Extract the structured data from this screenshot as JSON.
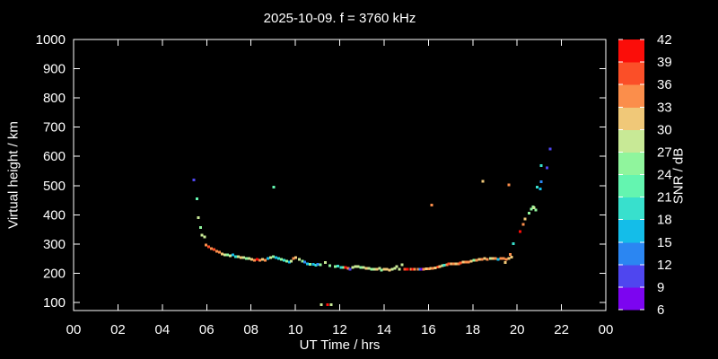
{
  "page": {
    "background_color": "#000000",
    "frame_color": "#ffffff"
  },
  "chart_data": {
    "type": "scatter",
    "title": "2025-10-09. f = 3760 kHz",
    "xlabel": "UT Time / hrs",
    "ylabel": "Virtual height / km",
    "xlim": [
      0,
      24
    ],
    "ylim": [
      72,
      1000
    ],
    "grid": false,
    "x_ticks": [
      {
        "value": 0,
        "label": "00"
      },
      {
        "value": 2,
        "label": "02"
      },
      {
        "value": 4,
        "label": "04"
      },
      {
        "value": 6,
        "label": "06"
      },
      {
        "value": 8,
        "label": "08"
      },
      {
        "value": 10,
        "label": "10"
      },
      {
        "value": 12,
        "label": "12"
      },
      {
        "value": 14,
        "label": "14"
      },
      {
        "value": 16,
        "label": "16"
      },
      {
        "value": 18,
        "label": "18"
      },
      {
        "value": 20,
        "label": "20"
      },
      {
        "value": 22,
        "label": "22"
      },
      {
        "value": 24,
        "label": "00"
      }
    ],
    "y_ticks": [
      100,
      200,
      300,
      400,
      500,
      600,
      700,
      800,
      900,
      1000
    ],
    "colorbar": {
      "label": "SNR / dB",
      "min": 6,
      "max": 42,
      "tick_step": 3,
      "ticks": [
        6,
        9,
        12,
        15,
        18,
        21,
        24,
        27,
        30,
        33,
        36,
        39,
        42
      ],
      "segment_colors_low_to_high": [
        "#7c05f0",
        "#4f46ef",
        "#2b86f2",
        "#14bde9",
        "#38e0cd",
        "#64f5b0",
        "#90f59d",
        "#c8e996",
        "#f0c878",
        "#fb8e4b",
        "#fb4f28",
        "#fb0d09"
      ]
    },
    "points_format": [
      "ut_hr",
      "virtual_height_km",
      "snr_db"
    ],
    "points": [
      [
        5.42,
        520,
        10.5
      ],
      [
        5.56,
        455,
        22.5
      ],
      [
        5.63,
        390,
        28.5
      ],
      [
        5.72,
        357,
        25.5
      ],
      [
        5.79,
        331,
        28.5
      ],
      [
        5.9,
        325,
        28.5
      ],
      [
        5.97,
        297,
        34.5
      ],
      [
        6.09,
        290,
        37.5
      ],
      [
        6.21,
        284,
        34.5
      ],
      [
        6.33,
        281,
        37.5
      ],
      [
        6.45,
        275,
        34.5
      ],
      [
        6.58,
        272,
        34.5
      ],
      [
        6.7,
        266,
        31.5
      ],
      [
        6.82,
        263,
        28.5
      ],
      [
        6.94,
        263,
        25.5
      ],
      [
        7.06,
        260,
        28.5
      ],
      [
        7.18,
        263,
        16.5
      ],
      [
        7.3,
        257,
        19.5
      ],
      [
        7.43,
        257,
        28.5
      ],
      [
        7.55,
        254,
        31.5
      ],
      [
        7.67,
        254,
        28.5
      ],
      [
        7.79,
        251,
        25.5
      ],
      [
        7.91,
        251,
        28.5
      ],
      [
        8.03,
        248,
        31.5
      ],
      [
        8.15,
        245,
        34.5
      ],
      [
        8.28,
        248,
        40.5
      ],
      [
        8.4,
        245,
        34.5
      ],
      [
        8.52,
        248,
        31.5
      ],
      [
        8.64,
        245,
        34.5
      ],
      [
        8.76,
        251,
        16.5
      ],
      [
        8.88,
        254,
        28.5
      ],
      [
        9.0,
        257,
        25.5
      ],
      [
        9.03,
        495,
        22.5
      ],
      [
        9.13,
        254,
        16.5
      ],
      [
        9.25,
        251,
        19.5
      ],
      [
        9.37,
        247,
        25.5
      ],
      [
        9.49,
        244,
        19.5
      ],
      [
        9.61,
        241,
        25.5
      ],
      [
        9.73,
        238,
        16.5
      ],
      [
        9.82,
        241,
        28.5
      ],
      [
        9.92,
        250,
        34.5
      ],
      [
        10.02,
        253,
        31.5
      ],
      [
        10.18,
        247,
        28.5
      ],
      [
        10.33,
        241,
        25.5
      ],
      [
        10.42,
        238,
        13.5
      ],
      [
        10.55,
        232,
        16.5
      ],
      [
        10.67,
        231,
        25.5
      ],
      [
        10.8,
        231,
        16.5
      ],
      [
        10.92,
        228,
        19.5
      ],
      [
        11.0,
        231,
        13.5
      ],
      [
        11.12,
        229,
        25.5
      ],
      [
        11.18,
        92,
        28.5
      ],
      [
        11.35,
        237,
        28.5
      ],
      [
        11.45,
        92,
        40.5
      ],
      [
        11.55,
        226,
        25.5
      ],
      [
        11.62,
        92,
        28.5
      ],
      [
        11.8,
        223,
        25.5
      ],
      [
        11.92,
        224,
        19.5
      ],
      [
        12.06,
        220,
        19.5
      ],
      [
        12.18,
        220,
        25.5
      ],
      [
        12.27,
        220,
        40.5
      ],
      [
        12.39,
        217,
        34.5
      ],
      [
        12.47,
        214,
        10.5
      ],
      [
        12.59,
        220,
        28.5
      ],
      [
        12.71,
        223,
        28.5
      ],
      [
        12.83,
        223,
        28.5
      ],
      [
        12.96,
        220,
        25.5
      ],
      [
        13.08,
        220,
        28.5
      ],
      [
        13.2,
        217,
        31.5
      ],
      [
        13.32,
        217,
        28.5
      ],
      [
        13.44,
        214,
        25.5
      ],
      [
        13.56,
        214,
        28.5
      ],
      [
        13.68,
        214,
        31.5
      ],
      [
        13.8,
        217,
        28.5
      ],
      [
        13.89,
        211,
        25.5
      ],
      [
        14.0,
        214,
        31.5
      ],
      [
        14.12,
        213,
        31.5
      ],
      [
        14.24,
        211,
        31.5
      ],
      [
        14.36,
        214,
        28.5
      ],
      [
        14.48,
        217,
        28.5
      ],
      [
        14.57,
        223,
        28.5
      ],
      [
        14.69,
        214,
        28.5
      ],
      [
        14.81,
        229,
        28.5
      ],
      [
        14.93,
        214,
        37.5
      ],
      [
        15.06,
        214,
        40.5
      ],
      [
        15.22,
        214,
        34.5
      ],
      [
        15.3,
        214,
        40.5
      ],
      [
        15.38,
        214,
        34.5
      ],
      [
        15.54,
        214,
        34.5
      ],
      [
        15.63,
        213,
        13.5
      ],
      [
        15.71,
        213,
        7.5
      ],
      [
        15.79,
        213,
        34.5
      ],
      [
        15.91,
        215,
        31.5
      ],
      [
        16.03,
        215,
        34.5
      ],
      [
        16.11,
        217,
        31.5
      ],
      [
        16.14,
        434,
        34.5
      ],
      [
        16.19,
        217,
        34.5
      ],
      [
        16.31,
        219,
        31.5
      ],
      [
        16.43,
        221,
        37.5
      ],
      [
        16.52,
        223,
        31.5
      ],
      [
        16.64,
        226,
        28.5
      ],
      [
        16.72,
        227,
        19.5
      ],
      [
        16.84,
        229,
        34.5
      ],
      [
        16.92,
        232,
        37.5
      ],
      [
        17.04,
        232,
        31.5
      ],
      [
        17.12,
        232,
        34.5
      ],
      [
        17.24,
        232,
        31.5
      ],
      [
        17.36,
        232,
        34.5
      ],
      [
        17.45,
        235,
        37.5
      ],
      [
        17.57,
        238,
        31.5
      ],
      [
        17.69,
        238,
        34.5
      ],
      [
        17.81,
        238,
        34.5
      ],
      [
        17.93,
        241,
        31.5
      ],
      [
        18.06,
        244,
        25.5
      ],
      [
        18.18,
        244,
        34.5
      ],
      [
        18.3,
        247,
        31.5
      ],
      [
        18.42,
        247,
        34.5
      ],
      [
        18.45,
        514,
        31.5
      ],
      [
        18.54,
        250,
        31.5
      ],
      [
        18.66,
        247,
        34.5
      ],
      [
        18.79,
        250,
        28.5
      ],
      [
        18.91,
        250,
        31.5
      ],
      [
        19.03,
        250,
        34.5
      ],
      [
        19.15,
        247,
        16.5
      ],
      [
        19.27,
        250,
        34.5
      ],
      [
        19.39,
        250,
        34.5
      ],
      [
        19.46,
        236,
        31.5
      ],
      [
        19.51,
        247,
        34.5
      ],
      [
        19.62,
        503,
        34.5
      ],
      [
        19.63,
        250,
        31.5
      ],
      [
        19.69,
        265,
        34.5
      ],
      [
        19.76,
        255,
        31.5
      ],
      [
        19.84,
        301,
        19.5
      ],
      [
        20.14,
        342,
        40.5
      ],
      [
        20.27,
        367,
        34.5
      ],
      [
        20.36,
        386,
        31.5
      ],
      [
        20.54,
        406,
        25.5
      ],
      [
        20.65,
        420,
        25.5
      ],
      [
        20.73,
        427,
        25.5
      ],
      [
        20.77,
        424,
        28.5
      ],
      [
        20.85,
        417,
        25.5
      ],
      [
        20.9,
        494,
        19.5
      ],
      [
        21.04,
        488,
        16.5
      ],
      [
        21.08,
        568,
        19.5
      ],
      [
        21.09,
        513,
        13.5
      ],
      [
        21.34,
        561,
        10.5
      ],
      [
        21.49,
        625,
        10.5
      ]
    ]
  }
}
